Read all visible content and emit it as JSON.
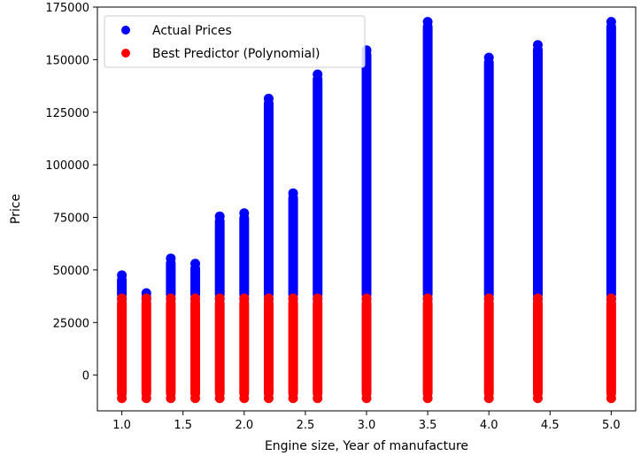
{
  "chart_data": {
    "type": "scatter",
    "title": "",
    "xlabel": "Engine size, Year of manufacture",
    "ylabel": "Price",
    "xlim": [
      0.8,
      5.2
    ],
    "ylim": [
      -17000,
      175000
    ],
    "xticks": [
      1.0,
      1.5,
      2.0,
      2.5,
      3.0,
      3.5,
      4.0,
      4.5,
      5.0
    ],
    "xtick_labels": [
      "1.0",
      "1.5",
      "2.0",
      "2.5",
      "3.0",
      "3.5",
      "4.0",
      "4.5",
      "5.0"
    ],
    "yticks": [
      0,
      25000,
      50000,
      75000,
      100000,
      125000,
      150000,
      175000
    ],
    "ytick_labels": [
      "0",
      "25000",
      "50000",
      "75000",
      "100000",
      "125000",
      "150000",
      "175000"
    ],
    "legend_position": "top-left",
    "grid": false,
    "series": [
      {
        "name": "Actual Prices",
        "color": "#0000ff",
        "columns": [
          {
            "x": 1.0,
            "y_min": 36000,
            "y_max": 47500
          },
          {
            "x": 1.2,
            "y_min": 36000,
            "y_max": 39000
          },
          {
            "x": 1.4,
            "y_min": 36000,
            "y_max": 55500
          },
          {
            "x": 1.6,
            "y_min": 36000,
            "y_max": 53000
          },
          {
            "x": 1.8,
            "y_min": 36000,
            "y_max": 75500
          },
          {
            "x": 2.0,
            "y_min": 36000,
            "y_max": 77000
          },
          {
            "x": 2.2,
            "y_min": 36000,
            "y_max": 131500
          },
          {
            "x": 2.4,
            "y_min": 36000,
            "y_max": 86500
          },
          {
            "x": 2.6,
            "y_min": 36000,
            "y_max": 143000
          },
          {
            "x": 3.0,
            "y_min": 36000,
            "y_max": 154500
          },
          {
            "x": 3.5,
            "y_min": 36000,
            "y_max": 168000
          },
          {
            "x": 4.0,
            "y_min": 36000,
            "y_max": 151000
          },
          {
            "x": 4.4,
            "y_min": 36000,
            "y_max": 157000
          },
          {
            "x": 5.0,
            "y_min": 36000,
            "y_max": 168000
          }
        ]
      },
      {
        "name": "Best Predictor (Polynomial)",
        "color": "#ff0000",
        "columns": [
          {
            "x": 1.0,
            "y_min": -11000,
            "y_max": 36500
          },
          {
            "x": 1.2,
            "y_min": -11000,
            "y_max": 36500
          },
          {
            "x": 1.4,
            "y_min": -11000,
            "y_max": 36500
          },
          {
            "x": 1.6,
            "y_min": -11000,
            "y_max": 36500
          },
          {
            "x": 1.8,
            "y_min": -11000,
            "y_max": 36500
          },
          {
            "x": 2.0,
            "y_min": -11000,
            "y_max": 36500
          },
          {
            "x": 2.2,
            "y_min": -11000,
            "y_max": 36500
          },
          {
            "x": 2.4,
            "y_min": -11000,
            "y_max": 36500
          },
          {
            "x": 2.6,
            "y_min": -11000,
            "y_max": 36500
          },
          {
            "x": 3.0,
            "y_min": -11000,
            "y_max": 36500
          },
          {
            "x": 3.5,
            "y_min": -11000,
            "y_max": 36500
          },
          {
            "x": 4.0,
            "y_min": -11000,
            "y_max": 36500
          },
          {
            "x": 4.4,
            "y_min": -11000,
            "y_max": 36500
          },
          {
            "x": 5.0,
            "y_min": -11000,
            "y_max": 36500
          }
        ]
      }
    ]
  }
}
